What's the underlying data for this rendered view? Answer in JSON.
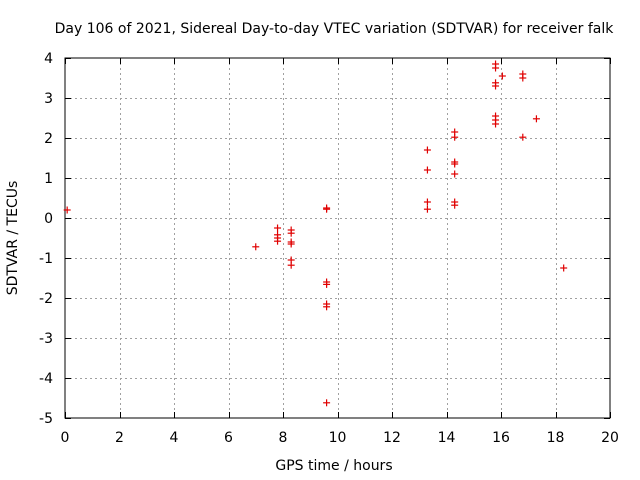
{
  "chart_data": {
    "type": "scatter",
    "title": "Day 106 of 2021, Sidereal Day-to-day VTEC variation (SDTVAR) for receiver falk",
    "xlabel": "GPS time / hours",
    "ylabel": "SDTVAR / TECUs",
    "xlim": [
      0,
      20
    ],
    "ylim": [
      -5,
      4
    ],
    "xticks": [
      0,
      2,
      4,
      6,
      8,
      10,
      12,
      14,
      16,
      18,
      20
    ],
    "yticks": [
      -5,
      -4,
      -3,
      -2,
      -1,
      0,
      1,
      2,
      3,
      4
    ],
    "grid": true,
    "marker": "+",
    "color": "#e00000",
    "series": [
      {
        "name": "SDTVAR",
        "points": [
          [
            0.08,
            0.2
          ],
          [
            7.0,
            -0.72
          ],
          [
            7.8,
            -0.25
          ],
          [
            7.8,
            -0.42
          ],
          [
            7.8,
            -0.5
          ],
          [
            7.8,
            -0.58
          ],
          [
            8.3,
            -0.3
          ],
          [
            8.3,
            -0.38
          ],
          [
            8.3,
            -0.6
          ],
          [
            8.3,
            -0.65
          ],
          [
            8.3,
            -1.05
          ],
          [
            8.3,
            -1.18
          ],
          [
            9.6,
            0.25
          ],
          [
            9.6,
            0.22
          ],
          [
            9.6,
            -1.6
          ],
          [
            9.6,
            -1.66
          ],
          [
            9.6,
            -2.15
          ],
          [
            9.6,
            -2.22
          ],
          [
            9.6,
            -4.62
          ],
          [
            13.3,
            1.7
          ],
          [
            13.3,
            1.2
          ],
          [
            13.3,
            0.4
          ],
          [
            13.3,
            0.22
          ],
          [
            14.3,
            2.15
          ],
          [
            14.3,
            2.02
          ],
          [
            14.3,
            1.4
          ],
          [
            14.3,
            1.35
          ],
          [
            14.3,
            1.1
          ],
          [
            14.3,
            0.4
          ],
          [
            14.3,
            0.32
          ],
          [
            15.8,
            3.85
          ],
          [
            15.8,
            3.75
          ],
          [
            15.8,
            3.38
          ],
          [
            15.8,
            3.3
          ],
          [
            15.8,
            2.55
          ],
          [
            15.8,
            2.45
          ],
          [
            15.8,
            2.35
          ],
          [
            16.05,
            3.55
          ],
          [
            16.8,
            3.6
          ],
          [
            16.8,
            3.5
          ],
          [
            16.8,
            2.02
          ],
          [
            17.3,
            2.48
          ],
          [
            18.3,
            -1.25
          ]
        ]
      }
    ]
  }
}
